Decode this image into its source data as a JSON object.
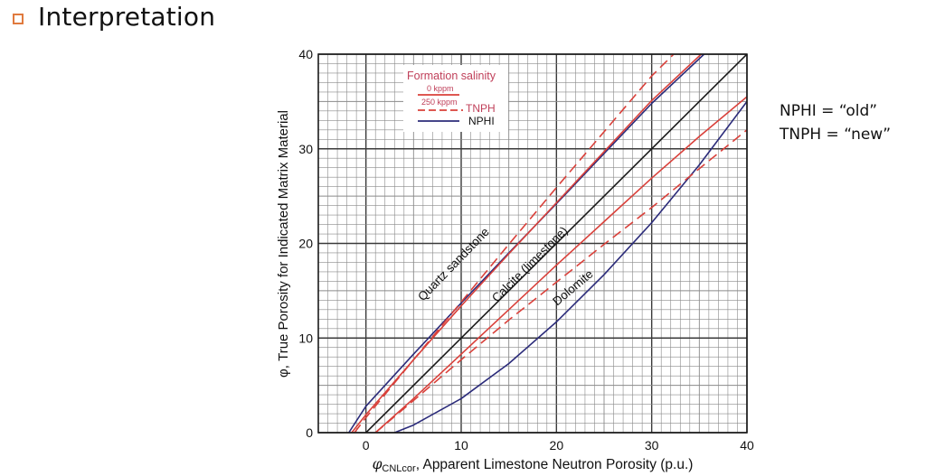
{
  "slide": {
    "title": "Interpretation",
    "bullet_color": "#e07a3e",
    "notes": [
      "NPHI = “old”",
      "TNPH = “new”"
    ]
  },
  "colors": {
    "nphi": "#2b2b7a",
    "tnph": "#d9403a",
    "calcite": "#1a1a1a",
    "legend_text": "#c0405a",
    "grid_major": "#3a3a3a",
    "grid_minor": "#8a8a8a"
  },
  "chart_data": {
    "type": "line",
    "title": "",
    "xlabel": "φCNLcor, Apparent Limestone Neutron Porosity (p.u.)",
    "xlabel_symbol": "φ",
    "xlabel_sub": "CNLcor",
    "xlabel_rest": ", Apparent Limestone Neutron Porosity (p.u.)",
    "ylabel": "φ, True Porosity for Indicated Matrix Material",
    "xlim": [
      -5,
      40
    ],
    "ylim": [
      0,
      40
    ],
    "xticks": [
      "0",
      "10",
      "20",
      "30",
      "40"
    ],
    "yticks": [
      "0",
      "10",
      "20",
      "30",
      "40"
    ],
    "grid": true,
    "legend": {
      "title": "Formation salinity",
      "entries": [
        {
          "label": "0 kppm",
          "style": "solid",
          "color": "#d9403a"
        },
        {
          "label": "250 kppm",
          "style": "dashed",
          "color": "#d9403a"
        },
        {
          "label": "TNPH",
          "group": true
        },
        {
          "label": "NPHI",
          "style": "solid",
          "color": "#2b2b7a"
        }
      ],
      "position": "upper-left"
    },
    "annotations": [
      {
        "text": "Quartz sandstone",
        "x": 9.5,
        "y": 17.5,
        "angle": -46
      },
      {
        "text": "Calcite (limestone)",
        "x": 17.5,
        "y": 17.5,
        "angle": -45
      },
      {
        "text": "Dolomite",
        "x": 22,
        "y": 15,
        "angle": -40
      }
    ],
    "series": [
      {
        "name": "Calcite (limestone)",
        "tool": "reference",
        "style": "solid",
        "x": [
          0,
          40
        ],
        "y": [
          0,
          40
        ]
      },
      {
        "name": "Quartz sandstone NPHI",
        "tool": "NPHI",
        "style": "solid",
        "x": [
          -1.8,
          0,
          5,
          10,
          15,
          20,
          25,
          30,
          35.5
        ],
        "y": [
          0,
          2.8,
          8.3,
          13.7,
          19.0,
          24.2,
          29.5,
          34.8,
          40
        ]
      },
      {
        "name": "Quartz sandstone TNPH 0 kppm",
        "tool": "TNPH",
        "style": "solid",
        "x": [
          -1.5,
          0,
          5,
          10,
          15,
          20,
          25,
          30,
          35.2
        ],
        "y": [
          0,
          1.9,
          7.7,
          13.4,
          18.9,
          24.3,
          29.7,
          35.1,
          40
        ]
      },
      {
        "name": "Quartz sandstone TNPH 250 kppm",
        "tool": "TNPH",
        "style": "dashed",
        "x": [
          -1.2,
          0,
          5,
          10,
          15,
          20,
          25,
          30,
          32.8
        ],
        "y": [
          0,
          1.6,
          7.7,
          13.8,
          19.9,
          25.9,
          31.8,
          37.7,
          40.5
        ]
      },
      {
        "name": "Dolomite NPHI",
        "tool": "NPHI",
        "style": "solid",
        "x": [
          3,
          5,
          10,
          15,
          20,
          25,
          30,
          35,
          40
        ],
        "y": [
          0,
          0.8,
          3.6,
          7.3,
          11.7,
          16.7,
          22.2,
          28.3,
          35
        ]
      },
      {
        "name": "Dolomite TNPH 0 kppm",
        "tool": "TNPH",
        "style": "solid",
        "x": [
          1,
          5,
          10,
          15,
          20,
          25,
          30,
          35,
          40
        ],
        "y": [
          0,
          3.6,
          8.3,
          13.0,
          17.7,
          22.3,
          26.9,
          31.3,
          35.5
        ]
      },
      {
        "name": "Dolomite TNPH 250 kppm",
        "tool": "TNPH",
        "style": "dashed",
        "x": [
          1,
          5,
          10,
          15,
          20,
          25,
          30,
          35,
          40
        ],
        "y": [
          0,
          3.4,
          7.7,
          11.9,
          15.9,
          19.9,
          23.8,
          27.9,
          32
        ]
      }
    ]
  }
}
